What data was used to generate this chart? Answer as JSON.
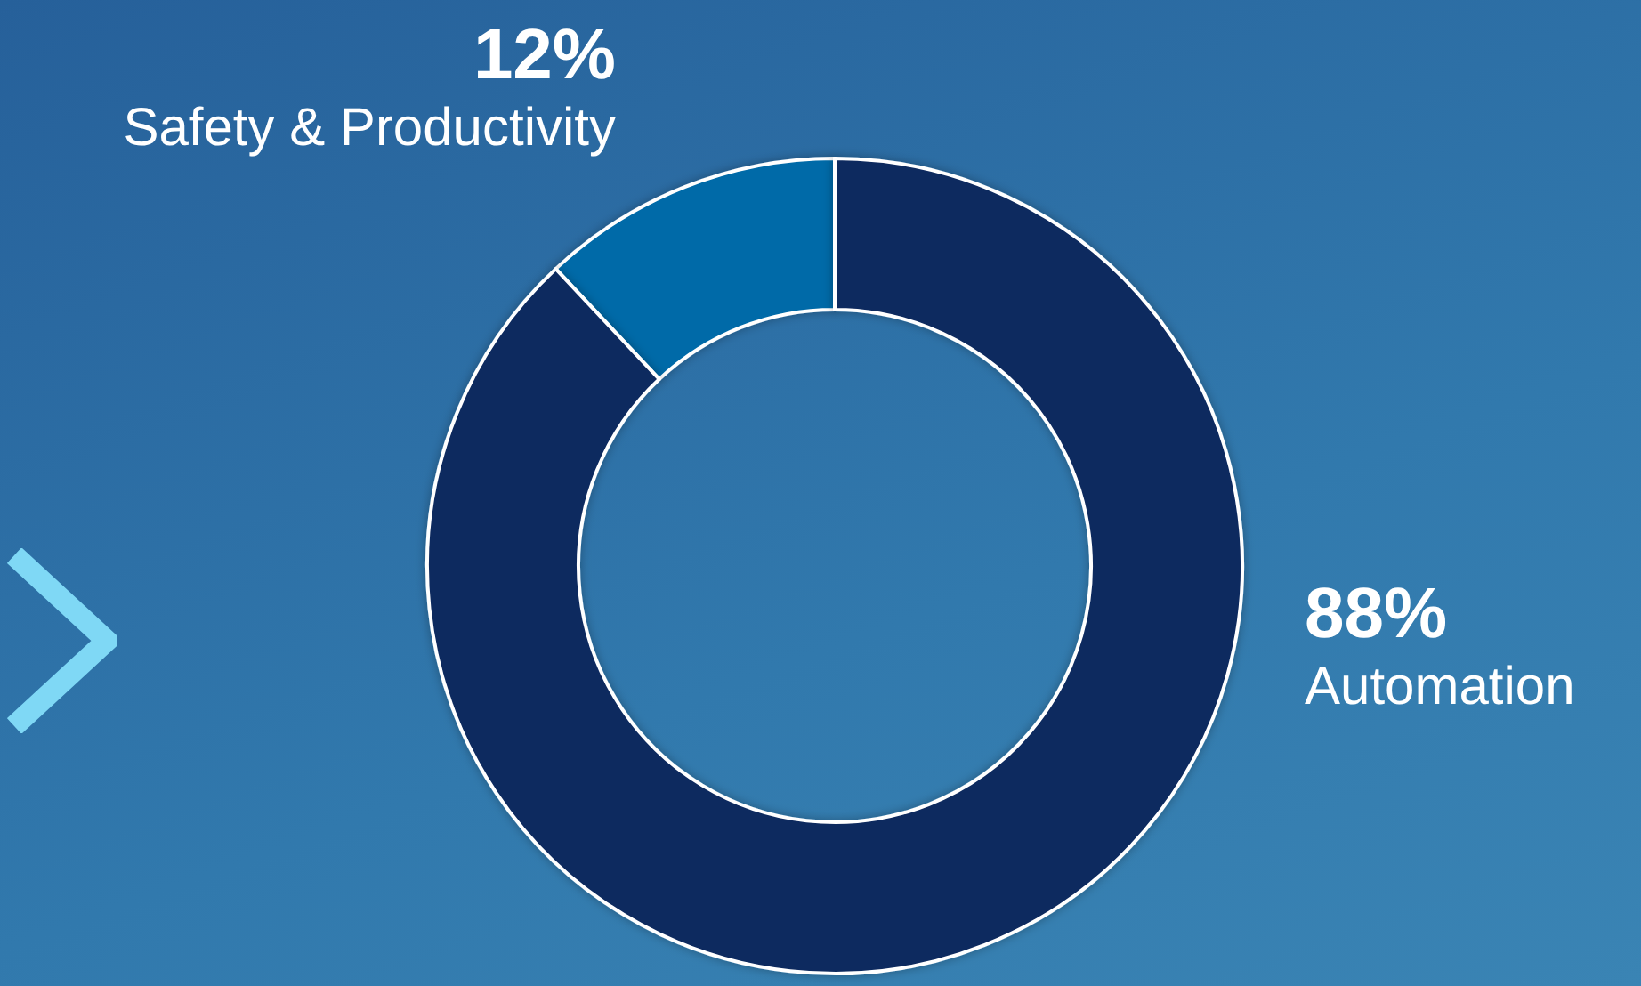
{
  "chart_data": {
    "type": "donut",
    "categories": [
      "Safety & Productivity",
      "Automation"
    ],
    "values": [
      12,
      88
    ],
    "colors": [
      "#006aa8",
      "#0e2a5e"
    ],
    "value_labels": [
      "12%",
      "88%"
    ],
    "legend": false
  }
}
